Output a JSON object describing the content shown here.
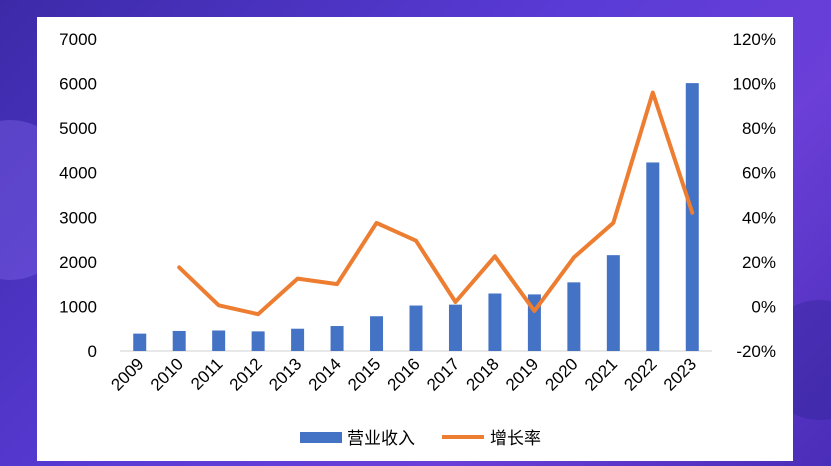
{
  "chart_data": {
    "type": "bar+line",
    "categories": [
      "2009",
      "2010",
      "2011",
      "2012",
      "2013",
      "2014",
      "2015",
      "2016",
      "2017",
      "2018",
      "2019",
      "2020",
      "2021",
      "2022",
      "2023"
    ],
    "series": [
      {
        "name": "营业收入",
        "type": "bar",
        "axis": "left",
        "color": "#4472C4",
        "values": [
          390,
          450,
          460,
          440,
          500,
          560,
          780,
          1020,
          1040,
          1290,
          1270,
          1540,
          2150,
          4230,
          6010
        ]
      },
      {
        "name": "增长率",
        "type": "line",
        "axis": "right",
        "color": "#ED7D31",
        "values": [
          null,
          17.5,
          0.5,
          -3.5,
          12.5,
          10,
          37.5,
          29.5,
          2,
          22.5,
          -2,
          22,
          37.5,
          96,
          42
        ]
      }
    ],
    "y_left": {
      "min": 0,
      "max": 7000,
      "ticks": [
        0,
        1000,
        2000,
        3000,
        4000,
        5000,
        6000,
        7000
      ]
    },
    "y_right": {
      "min": -20,
      "max": 120,
      "ticks": [
        "-20%",
        "0%",
        "20%",
        "40%",
        "60%",
        "80%",
        "100%",
        "120%"
      ]
    },
    "legend": [
      "营业收入",
      "增长率"
    ],
    "legend_position": "bottom",
    "grid": false
  }
}
